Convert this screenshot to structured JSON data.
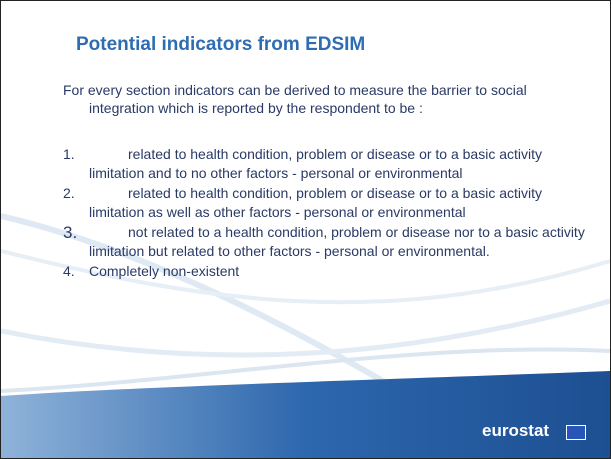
{
  "title": "Potential indicators from EDSIM",
  "intro": "For every section indicators can be derived to measure the barrier to social integration which is reported by the respondent to be :",
  "items": [
    {
      "number": "1.",
      "text": "related to health condition, problem or disease or to a basic activity limitation and to no other factors - personal or environmental"
    },
    {
      "number": "2.",
      "text": "related to health condition, problem or disease or to a basic activity limitation as well as other factors - personal or environmental"
    },
    {
      "number": "3.",
      "text": "not related to a health condition, problem or disease nor to a basic activity limitation but related to other factors - personal or environmental."
    },
    {
      "number": "4.",
      "text": "Completely non-existent"
    }
  ],
  "logo": "eurostat"
}
